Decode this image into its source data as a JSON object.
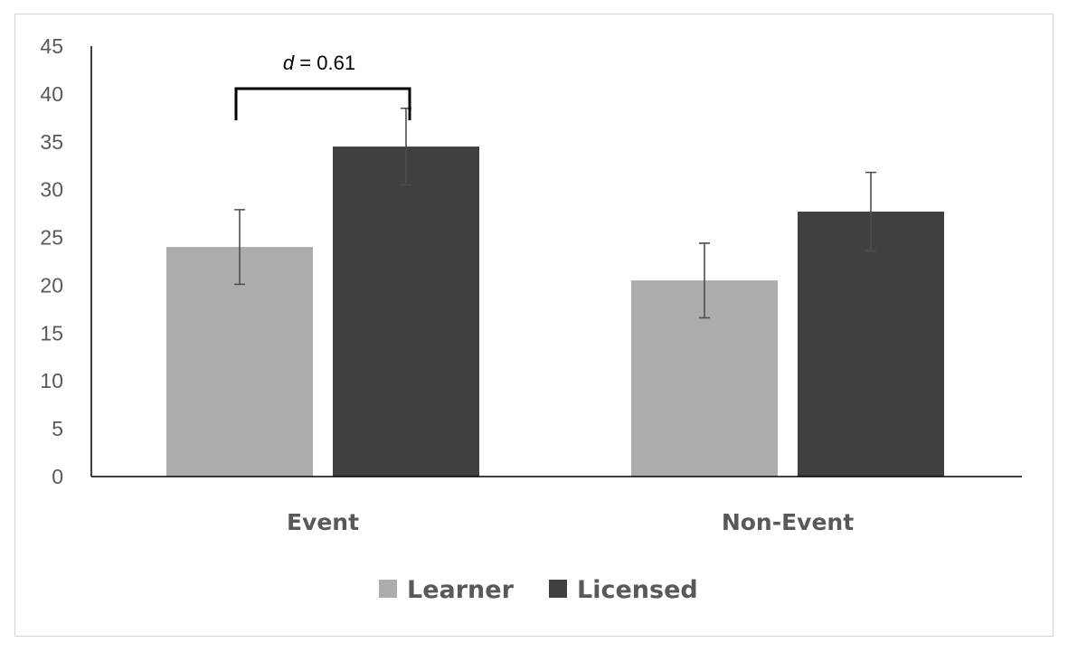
{
  "chart_data": {
    "type": "bar",
    "title": "",
    "xlabel": "",
    "ylabel": "",
    "categories": [
      "Event",
      "Non-Event"
    ],
    "series": [
      {
        "name": "Learner",
        "color": "#aeabab",
        "values": [
          24.0,
          20.5
        ],
        "error": [
          3.9,
          3.9
        ]
      },
      {
        "name": "Licensed",
        "color": "#404040",
        "values": [
          34.5,
          27.7
        ],
        "error": [
          4.0,
          4.1
        ]
      }
    ],
    "ylim": [
      0,
      45
    ],
    "yticks": [
      0,
      5,
      10,
      15,
      20,
      25,
      30,
      35,
      40,
      45
    ],
    "grid": false,
    "legend": "bottom-center",
    "annotation": {
      "italic": "d",
      "rest": " = 0.61",
      "category": "Event"
    }
  }
}
